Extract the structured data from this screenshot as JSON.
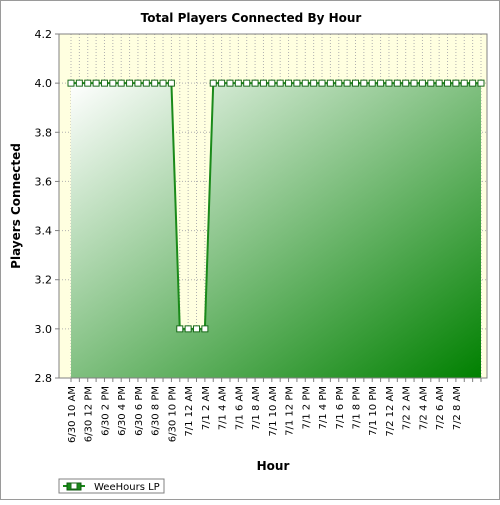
{
  "chart_data": {
    "type": "area",
    "title": "Total Players Connected By Hour",
    "xlabel": "Hour",
    "ylabel": "Players Connected",
    "ylim": [
      2.8,
      4.2
    ],
    "y_ticks": [
      "2.8",
      "3.0",
      "3.2",
      "3.4",
      "3.6",
      "3.8",
      "4.0",
      "4.2"
    ],
    "grid": true,
    "legend_position": "bottom-left",
    "x_tick_labels": [
      "6/30 10 AM",
      "6/30 12 PM",
      "6/30 2 PM",
      "6/30 4 PM",
      "6/30 6 PM",
      "6/30 8 PM",
      "6/30 10 PM",
      "7/1 12 AM",
      "7/1 2 AM",
      "7/1 4 AM",
      "7/1 6 AM",
      "7/1 8 AM",
      "7/1 10 AM",
      "7/1 12 PM",
      "7/1 2 PM",
      "7/1 4 PM",
      "7/1 6 PM",
      "7/1 8 PM",
      "7/1 10 PM",
      "7/2 12 AM",
      "7/2 2 AM",
      "7/2 4 AM",
      "7/2 6 AM",
      "7/2 8 AM"
    ],
    "series": [
      {
        "name": "WeeHours LP",
        "color": "#1a8a1a",
        "values": [
          4,
          4,
          4,
          4,
          4,
          4,
          4,
          4,
          4,
          4,
          4,
          4,
          4,
          3,
          3,
          3,
          3,
          4,
          4,
          4,
          4,
          4,
          4,
          4,
          4,
          4,
          4,
          4,
          4,
          4,
          4,
          4,
          4,
          4,
          4,
          4,
          4,
          4,
          4,
          4,
          4,
          4,
          4,
          4,
          4,
          4,
          4,
          4,
          4,
          4
        ]
      }
    ]
  },
  "colors": {
    "plot_background": "#ffffe0",
    "gradient_light": "#ffffff",
    "gradient_dark": "#008000",
    "grid": "#b0b0b0"
  }
}
